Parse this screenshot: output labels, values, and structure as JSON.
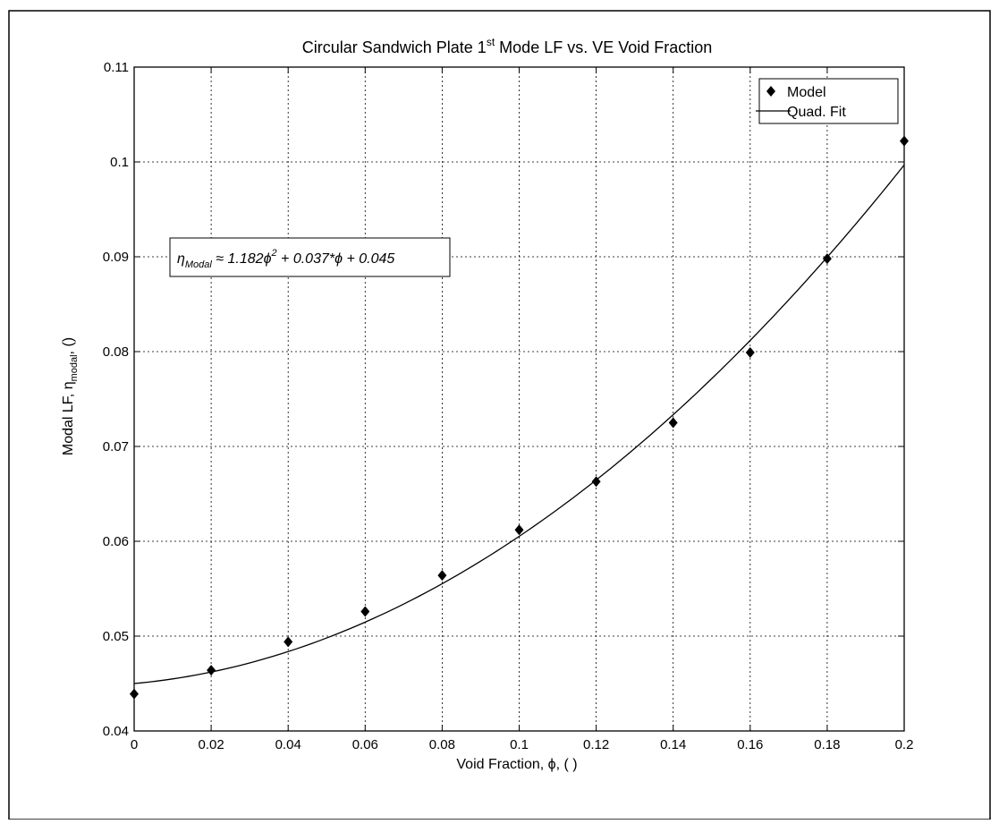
{
  "chart_data": {
    "type": "scatter",
    "title": {
      "pre": "Circular Sandwich Plate 1",
      "sup": "st",
      "post": " Mode LF vs. VE Void Fraction"
    },
    "xlabel": "Void Fraction, ϕ, ( )",
    "ylabel": {
      "pre": "Modal LF, η",
      "sub": "modal",
      "post": ", ()"
    },
    "xlim": [
      0,
      0.2
    ],
    "ylim": [
      0.04,
      0.11
    ],
    "xticks": [
      "0",
      "0.02",
      "0.04",
      "0.06",
      "0.08",
      "0.1",
      "0.12",
      "0.14",
      "0.16",
      "0.18",
      "0.2"
    ],
    "yticks": [
      "0.04",
      "0.05",
      "0.06",
      "0.07",
      "0.08",
      "0.09",
      "0.1",
      "0.11"
    ],
    "grid": true,
    "legend_position": "top-right",
    "series": [
      {
        "name": "Model",
        "marker": "diamond",
        "x": [
          0,
          0.02,
          0.04,
          0.06,
          0.08,
          0.1,
          0.12,
          0.14,
          0.16,
          0.18,
          0.2
        ],
        "y": [
          0.0439,
          0.0464,
          0.0494,
          0.0526,
          0.0564,
          0.0612,
          0.0663,
          0.0725,
          0.0799,
          0.0898,
          0.1022
        ]
      },
      {
        "name": "Quad. Fit",
        "style": "line",
        "coefficients": {
          "a": 1.182,
          "b": 0.037,
          "c": 0.045
        }
      }
    ],
    "annotation": {
      "eta": "η",
      "sub": "Modal",
      "part1": " ≈ 1.182ϕ",
      "sup": "2",
      "part2": " + 0.037*ϕ + 0.045"
    },
    "line_color": "#000000"
  }
}
